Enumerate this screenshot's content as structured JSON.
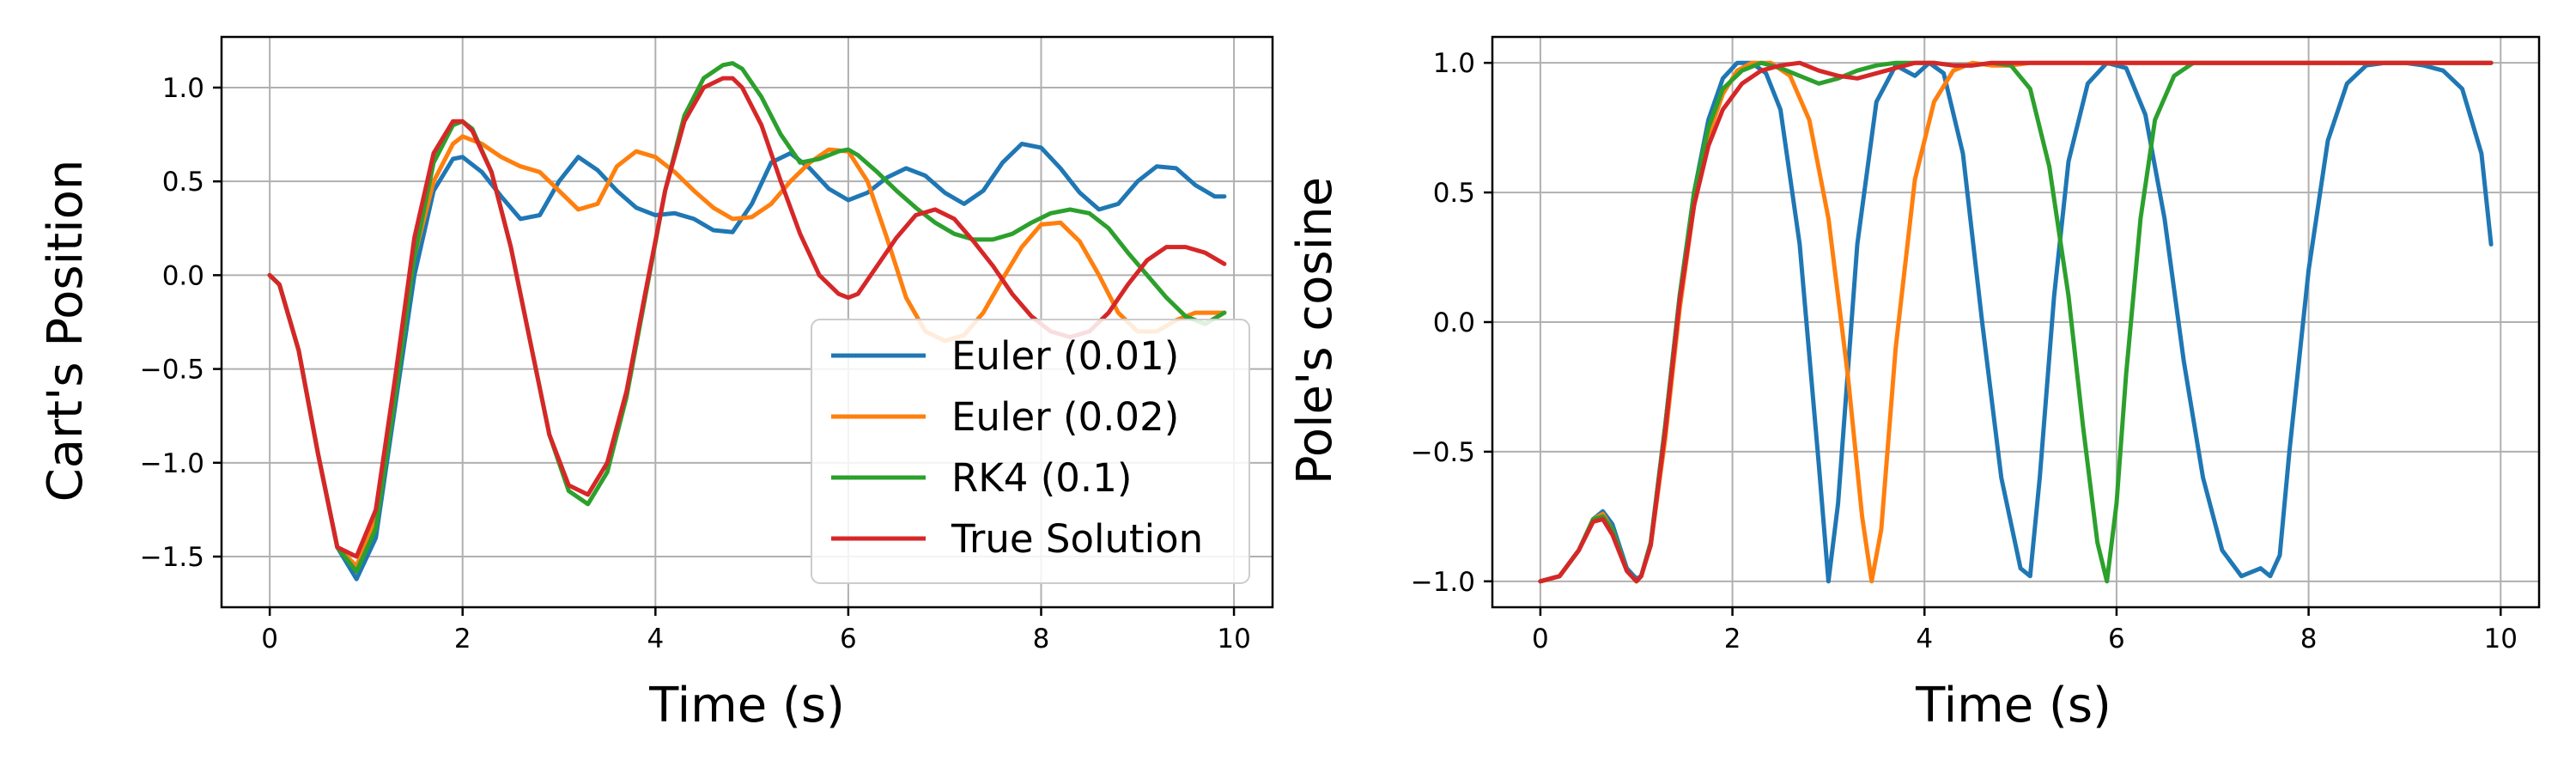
{
  "colors": {
    "Euler (0.01)": "#1f77b4",
    "Euler (0.02)": "#ff7f0e",
    "RK4 (0.1)": "#2ca02c",
    "True Solution": "#d62728",
    "grid": "#b0b0b0",
    "axes": "#000000"
  },
  "chart_data": [
    {
      "type": "line",
      "xlabel": "Time (s)",
      "ylabel": "Cart's Position",
      "xlim": [
        -0.5,
        10.4
      ],
      "ylim": [
        -1.77,
        1.27
      ],
      "xticks": [
        0,
        2,
        4,
        6,
        8,
        10
      ],
      "yticks": [
        1.0,
        0.5,
        0.0,
        -0.5,
        -1.0,
        -1.5
      ],
      "xtick_labels": [
        "0",
        "2",
        "4",
        "6",
        "8",
        "10"
      ],
      "ytick_labels": [
        "1.0",
        "0.5",
        "0.0",
        "−0.5",
        "−1.0",
        "−1.5"
      ],
      "grid": true,
      "legend_position": "lower right",
      "series": [
        {
          "name": "Euler (0.01)",
          "x": [
            0,
            0.1,
            0.3,
            0.5,
            0.7,
            0.9,
            1.1,
            1.3,
            1.5,
            1.7,
            1.9,
            2.0,
            2.2,
            2.4,
            2.6,
            2.8,
            3.0,
            3.2,
            3.4,
            3.6,
            3.8,
            4.0,
            4.2,
            4.4,
            4.6,
            4.8,
            5.0,
            5.2,
            5.4,
            5.6,
            5.8,
            6.0,
            6.2,
            6.4,
            6.6,
            6.8,
            7.0,
            7.2,
            7.4,
            7.6,
            7.8,
            8.0,
            8.2,
            8.4,
            8.6,
            8.8,
            9.0,
            9.2,
            9.4,
            9.6,
            9.8,
            9.9
          ],
          "y": [
            0,
            -0.05,
            -0.4,
            -0.95,
            -1.45,
            -1.62,
            -1.4,
            -0.7,
            0.0,
            0.45,
            0.62,
            0.63,
            0.55,
            0.42,
            0.3,
            0.32,
            0.5,
            0.63,
            0.56,
            0.45,
            0.36,
            0.32,
            0.33,
            0.3,
            0.24,
            0.23,
            0.38,
            0.6,
            0.65,
            0.57,
            0.46,
            0.4,
            0.44,
            0.52,
            0.57,
            0.53,
            0.44,
            0.38,
            0.45,
            0.6,
            0.7,
            0.68,
            0.57,
            0.44,
            0.35,
            0.38,
            0.5,
            0.58,
            0.57,
            0.48,
            0.42,
            0.42
          ]
        },
        {
          "name": "Euler (0.02)",
          "x": [
            0,
            0.1,
            0.3,
            0.5,
            0.7,
            0.9,
            1.1,
            1.3,
            1.5,
            1.7,
            1.9,
            2.0,
            2.2,
            2.4,
            2.6,
            2.8,
            3.0,
            3.2,
            3.4,
            3.6,
            3.8,
            4.0,
            4.2,
            4.4,
            4.6,
            4.8,
            5.0,
            5.2,
            5.4,
            5.6,
            5.8,
            6.0,
            6.2,
            6.4,
            6.6,
            6.8,
            7.0,
            7.2,
            7.4,
            7.6,
            7.8,
            8.0,
            8.2,
            8.4,
            8.6,
            8.8,
            9.0,
            9.2,
            9.4,
            9.6,
            9.8,
            9.9
          ],
          "y": [
            0,
            -0.05,
            -0.4,
            -0.95,
            -1.45,
            -1.55,
            -1.3,
            -0.6,
            0.1,
            0.5,
            0.7,
            0.74,
            0.7,
            0.63,
            0.58,
            0.55,
            0.45,
            0.35,
            0.38,
            0.58,
            0.66,
            0.63,
            0.55,
            0.45,
            0.36,
            0.3,
            0.31,
            0.38,
            0.5,
            0.6,
            0.67,
            0.66,
            0.5,
            0.2,
            -0.12,
            -0.3,
            -0.35,
            -0.32,
            -0.2,
            -0.02,
            0.15,
            0.27,
            0.28,
            0.18,
            0.0,
            -0.2,
            -0.3,
            -0.3,
            -0.24,
            -0.2,
            -0.2,
            -0.2
          ]
        },
        {
          "name": "RK4 (0.1)",
          "x": [
            0,
            0.1,
            0.3,
            0.5,
            0.7,
            0.9,
            1.1,
            1.3,
            1.5,
            1.7,
            1.9,
            2.0,
            2.1,
            2.3,
            2.5,
            2.7,
            2.9,
            3.1,
            3.3,
            3.5,
            3.7,
            3.9,
            4.1,
            4.3,
            4.5,
            4.7,
            4.8,
            4.9,
            5.1,
            5.3,
            5.5,
            5.7,
            5.9,
            6.0,
            6.1,
            6.3,
            6.5,
            6.7,
            6.9,
            7.1,
            7.3,
            7.5,
            7.7,
            7.9,
            8.1,
            8.3,
            8.5,
            8.7,
            8.9,
            9.1,
            9.3,
            9.5,
            9.7,
            9.9
          ],
          "y": [
            0,
            -0.05,
            -0.4,
            -0.95,
            -1.45,
            -1.58,
            -1.35,
            -0.65,
            0.1,
            0.6,
            0.8,
            0.82,
            0.78,
            0.55,
            0.15,
            -0.35,
            -0.85,
            -1.15,
            -1.22,
            -1.05,
            -0.65,
            -0.1,
            0.45,
            0.85,
            1.05,
            1.12,
            1.13,
            1.1,
            0.95,
            0.75,
            0.6,
            0.62,
            0.66,
            0.67,
            0.64,
            0.55,
            0.45,
            0.36,
            0.28,
            0.22,
            0.19,
            0.19,
            0.22,
            0.28,
            0.33,
            0.35,
            0.33,
            0.25,
            0.12,
            0.0,
            -0.12,
            -0.22,
            -0.26,
            -0.2
          ]
        },
        {
          "name": "True Solution",
          "x": [
            0,
            0.1,
            0.3,
            0.5,
            0.7,
            0.9,
            1.1,
            1.3,
            1.5,
            1.7,
            1.9,
            2.0,
            2.1,
            2.3,
            2.5,
            2.7,
            2.9,
            3.1,
            3.3,
            3.5,
            3.7,
            3.9,
            4.1,
            4.3,
            4.5,
            4.7,
            4.8,
            4.9,
            5.1,
            5.3,
            5.5,
            5.7,
            5.9,
            6.0,
            6.1,
            6.3,
            6.5,
            6.7,
            6.9,
            7.1,
            7.3,
            7.5,
            7.7,
            7.9,
            8.1,
            8.3,
            8.5,
            8.7,
            8.9,
            9.1,
            9.3,
            9.5,
            9.7,
            9.9
          ],
          "y": [
            0,
            -0.05,
            -0.4,
            -0.95,
            -1.45,
            -1.5,
            -1.25,
            -0.55,
            0.2,
            0.65,
            0.82,
            0.82,
            0.77,
            0.55,
            0.15,
            -0.35,
            -0.85,
            -1.12,
            -1.17,
            -1.0,
            -0.62,
            -0.08,
            0.45,
            0.82,
            1.0,
            1.05,
            1.05,
            1.0,
            0.8,
            0.5,
            0.22,
            0.0,
            -0.1,
            -0.12,
            -0.1,
            0.05,
            0.2,
            0.32,
            0.35,
            0.3,
            0.18,
            0.05,
            -0.1,
            -0.22,
            -0.3,
            -0.33,
            -0.3,
            -0.2,
            -0.05,
            0.08,
            0.15,
            0.15,
            0.12,
            0.06
          ]
        }
      ]
    },
    {
      "type": "line",
      "xlabel": "Time (s)",
      "ylabel": "Pole's cosine",
      "xlim": [
        -0.5,
        10.4
      ],
      "ylim": [
        -1.1,
        1.1
      ],
      "xticks": [
        0,
        2,
        4,
        6,
        8,
        10
      ],
      "yticks": [
        1.0,
        0.5,
        0.0,
        -0.5,
        -1.0
      ],
      "xtick_labels": [
        "0",
        "2",
        "4",
        "6",
        "8",
        "10"
      ],
      "ytick_labels": [
        "1.0",
        "0.5",
        "0.0",
        "−0.5",
        "−1.0"
      ],
      "grid": true,
      "series": [
        {
          "name": "Euler (0.01)",
          "x": [
            0,
            0.2,
            0.4,
            0.55,
            0.65,
            0.75,
            0.9,
            1.0,
            1.05,
            1.15,
            1.3,
            1.45,
            1.6,
            1.75,
            1.9,
            2.05,
            2.2,
            2.35,
            2.5,
            2.7,
            2.9,
            3.0,
            3.1,
            3.3,
            3.5,
            3.7,
            3.9,
            4.05,
            4.2,
            4.4,
            4.6,
            4.8,
            5.0,
            5.1,
            5.2,
            5.35,
            5.5,
            5.7,
            5.9,
            6.1,
            6.3,
            6.5,
            6.7,
            6.9,
            7.1,
            7.3,
            7.5,
            7.6,
            7.7,
            7.8,
            8.0,
            8.2,
            8.4,
            8.6,
            8.8,
            9.0,
            9.2,
            9.4,
            9.6,
            9.8,
            9.9
          ],
          "y": [
            -1.0,
            -0.98,
            -0.88,
            -0.76,
            -0.73,
            -0.78,
            -0.95,
            -0.99,
            -0.98,
            -0.85,
            -0.4,
            0.1,
            0.5,
            0.78,
            0.94,
            1.0,
            1.0,
            0.96,
            0.82,
            0.3,
            -0.55,
            -1.0,
            -0.7,
            0.3,
            0.85,
            0.99,
            0.95,
            1.0,
            0.96,
            0.65,
            0.0,
            -0.6,
            -0.95,
            -0.98,
            -0.6,
            0.1,
            0.62,
            0.92,
            1.0,
            0.98,
            0.8,
            0.4,
            -0.15,
            -0.6,
            -0.88,
            -0.98,
            -0.95,
            -0.98,
            -0.9,
            -0.5,
            0.2,
            0.7,
            0.92,
            0.99,
            1.0,
            1.0,
            0.99,
            0.97,
            0.9,
            0.65,
            0.3
          ]
        },
        {
          "name": "Euler (0.02)",
          "x": [
            0,
            0.2,
            0.4,
            0.55,
            0.65,
            0.75,
            0.9,
            1.0,
            1.05,
            1.15,
            1.3,
            1.45,
            1.6,
            1.75,
            1.9,
            2.05,
            2.2,
            2.4,
            2.6,
            2.8,
            3.0,
            3.2,
            3.35,
            3.45,
            3.55,
            3.7,
            3.9,
            4.1,
            4.3,
            4.5,
            4.7,
            4.9,
            5.1,
            5.5,
            6.0,
            6.5,
            7.0,
            7.5,
            8.0,
            8.5,
            9.0,
            9.5,
            9.9
          ],
          "y": [
            -1.0,
            -0.98,
            -0.88,
            -0.76,
            -0.74,
            -0.8,
            -0.96,
            -1.0,
            -0.98,
            -0.86,
            -0.45,
            0.05,
            0.45,
            0.72,
            0.88,
            0.97,
            1.0,
            1.0,
            0.95,
            0.78,
            0.4,
            -0.2,
            -0.75,
            -1.0,
            -0.8,
            -0.1,
            0.55,
            0.85,
            0.97,
            1.0,
            0.99,
            0.99,
            1.0,
            1.0,
            1.0,
            1.0,
            1.0,
            1.0,
            1.0,
            1.0,
            1.0,
            1.0,
            1.0
          ]
        },
        {
          "name": "RK4 (0.1)",
          "x": [
            0,
            0.2,
            0.4,
            0.55,
            0.65,
            0.75,
            0.9,
            1.0,
            1.05,
            1.15,
            1.3,
            1.45,
            1.6,
            1.75,
            1.9,
            2.1,
            2.3,
            2.5,
            2.7,
            2.9,
            3.1,
            3.3,
            3.5,
            3.7,
            3.9,
            4.1,
            4.3,
            4.5,
            4.7,
            4.9,
            5.1,
            5.3,
            5.5,
            5.65,
            5.8,
            5.9,
            6.0,
            6.1,
            6.25,
            6.4,
            6.6,
            6.8,
            7.0,
            7.5,
            8.0,
            8.5,
            9.0,
            9.5,
            9.9
          ],
          "y": [
            -1.0,
            -0.98,
            -0.88,
            -0.76,
            -0.75,
            -0.8,
            -0.96,
            -1.0,
            -0.98,
            -0.85,
            -0.4,
            0.1,
            0.5,
            0.75,
            0.9,
            0.97,
            1.0,
            0.98,
            0.95,
            0.92,
            0.94,
            0.97,
            0.99,
            1.0,
            1.0,
            1.0,
            0.99,
            0.99,
            1.0,
            0.99,
            0.9,
            0.6,
            0.1,
            -0.4,
            -0.85,
            -1.0,
            -0.7,
            -0.2,
            0.4,
            0.78,
            0.95,
            1.0,
            1.0,
            1.0,
            1.0,
            1.0,
            1.0,
            1.0,
            1.0
          ]
        },
        {
          "name": "True Solution",
          "x": [
            0,
            0.2,
            0.4,
            0.55,
            0.65,
            0.75,
            0.9,
            1.0,
            1.05,
            1.15,
            1.3,
            1.45,
            1.6,
            1.75,
            1.9,
            2.1,
            2.3,
            2.5,
            2.7,
            2.9,
            3.1,
            3.3,
            3.5,
            3.7,
            3.9,
            4.1,
            4.3,
            4.5,
            4.7,
            4.9,
            5.1,
            5.5,
            6.0,
            6.5,
            7.0,
            7.5,
            8.0,
            8.5,
            9.0,
            9.5,
            9.9
          ],
          "y": [
            -1.0,
            -0.98,
            -0.88,
            -0.77,
            -0.76,
            -0.82,
            -0.96,
            -1.0,
            -0.98,
            -0.86,
            -0.42,
            0.08,
            0.45,
            0.68,
            0.82,
            0.92,
            0.97,
            0.99,
            1.0,
            0.97,
            0.95,
            0.94,
            0.96,
            0.98,
            1.0,
            1.0,
            0.99,
            0.99,
            1.0,
            1.0,
            1.0,
            1.0,
            1.0,
            1.0,
            1.0,
            1.0,
            1.0,
            1.0,
            1.0,
            1.0,
            1.0
          ]
        }
      ]
    }
  ]
}
